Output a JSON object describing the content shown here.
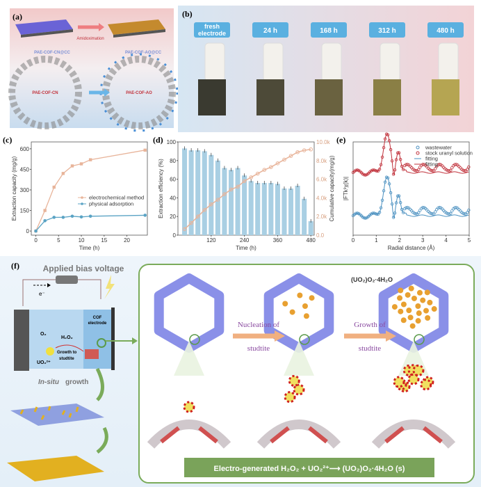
{
  "panel_a": {
    "label": "(a)",
    "arrow_label": "Amidoximation",
    "left_material": "PAE-COF-CN@CC",
    "right_material": "PAE-COF-AO@CC",
    "left_framework": "PAE-COF-CN",
    "right_framework": "PAE-COF-AO"
  },
  "panel_b": {
    "label": "(b)",
    "samples": [
      "fresh electrode",
      "24 h",
      "168 h",
      "312 h",
      "480 h"
    ],
    "electrode_colors": [
      "#3a3a30",
      "#4d4a38",
      "#6a6240",
      "#8a7f45",
      "#b5a552"
    ]
  },
  "chart_data": [
    {
      "panel": "(c)",
      "type": "line",
      "xlabel": "Time (h)",
      "ylabel": "Extraction capacity (mg/g)",
      "xlim": [
        -1,
        24.5
      ],
      "ylim": [
        -30,
        650
      ],
      "xticks": [
        0,
        5,
        10,
        15,
        20
      ],
      "yticks": [
        0,
        150,
        300,
        450,
        600
      ],
      "legend_placement": "center-right",
      "x": [
        0,
        2,
        4,
        6,
        8,
        10,
        12,
        24
      ],
      "series": [
        {
          "name": "electrochemical method",
          "color": "#e8b49a",
          "values": [
            0,
            150,
            320,
            420,
            475,
            490,
            520,
            590
          ]
        },
        {
          "name": "physical adsorption",
          "color": "#5aa3c4",
          "values": [
            0,
            75,
            100,
            100,
            108,
            103,
            108,
            115
          ]
        }
      ]
    },
    {
      "panel": "(d)",
      "type": "bar+line",
      "xlabel": "Time (h)",
      "ylabel": "Extraction efficiency (%)",
      "y2label": "Cumulative capacity(mg/g)",
      "xlim": [
        0,
        492
      ],
      "ylim": [
        0,
        100
      ],
      "y2lim": [
        0,
        10000
      ],
      "xticks": [
        120,
        240,
        360,
        480
      ],
      "yticks": [
        0,
        20,
        40,
        60,
        80,
        100
      ],
      "y2ticks": [
        "0.0",
        "2.0k",
        "4.0k",
        "6.0k",
        "8.0k",
        "10.0k"
      ],
      "x": [
        24,
        48,
        72,
        96,
        120,
        144,
        168,
        192,
        216,
        240,
        264,
        288,
        312,
        336,
        360,
        384,
        408,
        432,
        456,
        480
      ],
      "bars": {
        "color": "#a9cfe3",
        "values": [
          93,
          91,
          91,
          90,
          86,
          80,
          72,
          70,
          72,
          64,
          58,
          56,
          56,
          56,
          55,
          50,
          50,
          53,
          39,
          15
        ]
      },
      "line": {
        "color": "#e8b49a",
        "values": [
          650,
          1300,
          2000,
          2700,
          3300,
          3800,
          4400,
          4900,
          5200,
          5800,
          6200,
          6600,
          7000,
          7300,
          7700,
          8100,
          8500,
          8900,
          9100,
          9200
        ]
      }
    },
    {
      "panel": "(e)",
      "type": "line+scatter",
      "xlabel": "Radial distance (Å)",
      "ylabel": "|FTk³χ(k)|",
      "xlim": [
        0,
        5
      ],
      "xticks": [
        0,
        1,
        2,
        3,
        4,
        5
      ],
      "legend_placement": "top-right",
      "series": [
        {
          "name": "wastewater",
          "color": "#4a90c0",
          "kind": "markers"
        },
        {
          "name": "stock uranyl solution",
          "color": "#c0303a",
          "kind": "markers"
        },
        {
          "name": "fitting",
          "color": "#4a90c0",
          "kind": "line"
        },
        {
          "name": "fitting",
          "color": "#c0303a",
          "kind": "line"
        }
      ]
    }
  ],
  "panel_f": {
    "label": "(f)",
    "voltage_label": "Applied bias voltage",
    "electron": "e⁻",
    "electrode_label": [
      "COF",
      "electrode"
    ],
    "o2": "O₂",
    "h2o2": "H₂O₂",
    "uo2": "UO₂²⁺",
    "growth_label": [
      "Growth to",
      "studtite"
    ],
    "insitu": "In-situ",
    "growth": "growth",
    "nucleation": [
      "Nucleation of",
      "studtite"
    ],
    "growth_of": [
      "Growth of",
      "studtite"
    ],
    "product": "(UO₂)O₂·4H₂O",
    "equation": "Electro-generated H₂O₂ + UO₂²⁺⟶  (UO₂)O₂·4H₂O (s)"
  }
}
